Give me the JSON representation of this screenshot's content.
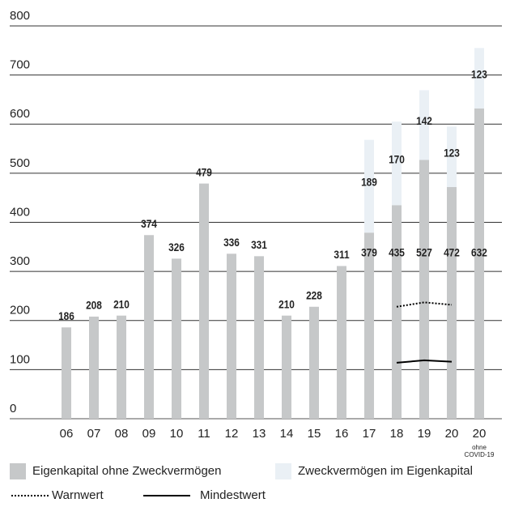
{
  "chart_data": {
    "type": "bar",
    "stacked": true,
    "categories": [
      "06",
      "07",
      "08",
      "09",
      "10",
      "11",
      "12",
      "13",
      "14",
      "15",
      "16",
      "17",
      "18",
      "19",
      "20",
      "20"
    ],
    "category_notes": [
      null,
      null,
      null,
      null,
      null,
      null,
      null,
      null,
      null,
      null,
      null,
      null,
      null,
      null,
      null,
      [
        "ohne",
        "COVID-19"
      ]
    ],
    "series": [
      {
        "name": "Eigenkapital ohne Zweckvermögen",
        "type": "bar",
        "color": "#c6c8c9",
        "values": [
          186,
          208,
          210,
          374,
          326,
          479,
          336,
          331,
          210,
          228,
          311,
          379,
          435,
          527,
          472,
          632
        ]
      },
      {
        "name": "Zweckvermögen im Eigenkapital",
        "type": "bar",
        "color": "#eaf0f5",
        "values": [
          null,
          null,
          null,
          null,
          null,
          null,
          null,
          null,
          null,
          null,
          null,
          189,
          170,
          142,
          123,
          123
        ]
      },
      {
        "name": "Warnwert",
        "type": "line",
        "dash": "dotted",
        "color": "#000000",
        "values": [
          null,
          null,
          null,
          null,
          null,
          null,
          null,
          null,
          null,
          null,
          null,
          null,
          228,
          237,
          232,
          null
        ]
      },
      {
        "name": "Mindestwert",
        "type": "line",
        "dash": "solid",
        "color": "#000000",
        "values": [
          null,
          null,
          null,
          null,
          null,
          null,
          null,
          null,
          null,
          null,
          null,
          null,
          114,
          119,
          116,
          null
        ]
      }
    ],
    "ylim": [
      0,
      800
    ],
    "yticks": [
      0,
      100,
      200,
      300,
      400,
      500,
      600,
      700,
      800
    ],
    "grid": true
  }
}
